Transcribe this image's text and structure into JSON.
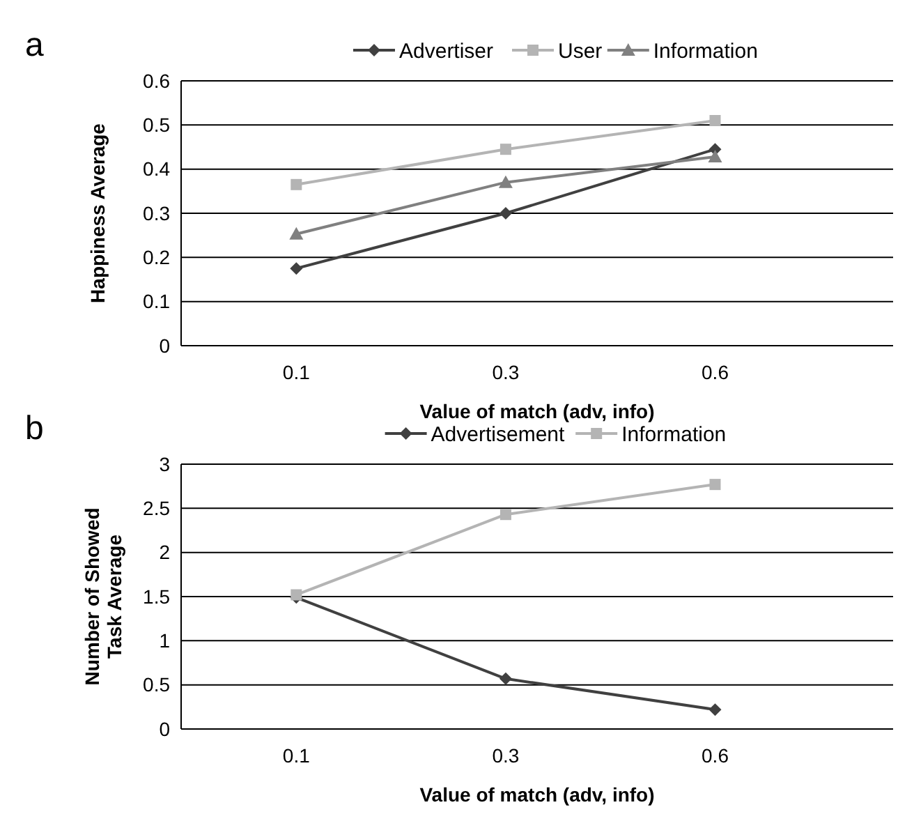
{
  "chart_data": [
    {
      "type": "line",
      "title": "a",
      "xlabel": "Value of match (adv, info)",
      "ylabel": "Happiness Average",
      "categories": [
        "0.1",
        "0.3",
        "0.6"
      ],
      "ylim": [
        0,
        0.6
      ],
      "yticks": [
        0,
        0.1,
        0.2,
        0.3,
        0.4,
        0.5,
        0.6
      ],
      "grid": "y",
      "legend": "top",
      "series": [
        {
          "name": "Advertiser",
          "color": "#404040",
          "marker": "diamond",
          "values": [
            0.175,
            0.3,
            0.445
          ]
        },
        {
          "name": "User",
          "color": "#b4b4b4",
          "marker": "square",
          "values": [
            0.365,
            0.445,
            0.51
          ]
        },
        {
          "name": "Information",
          "color": "#808080",
          "marker": "triangle",
          "values": [
            0.253,
            0.37,
            0.428
          ]
        }
      ]
    },
    {
      "type": "line",
      "title": "b",
      "xlabel": "Value of match (adv, info)",
      "ylabel": "Number of Showed Task Average",
      "categories": [
        "0.1",
        "0.3",
        "0.6"
      ],
      "ylim": [
        0,
        3
      ],
      "yticks": [
        0,
        0.5,
        1,
        1.5,
        2,
        2.5,
        3
      ],
      "grid": "y",
      "legend": "top",
      "series": [
        {
          "name": "Advertisement",
          "color": "#404040",
          "marker": "diamond",
          "values": [
            1.49,
            0.57,
            0.22
          ]
        },
        {
          "name": "Information",
          "color": "#b4b4b4",
          "marker": "square",
          "values": [
            1.52,
            2.43,
            2.77
          ]
        }
      ]
    }
  ]
}
